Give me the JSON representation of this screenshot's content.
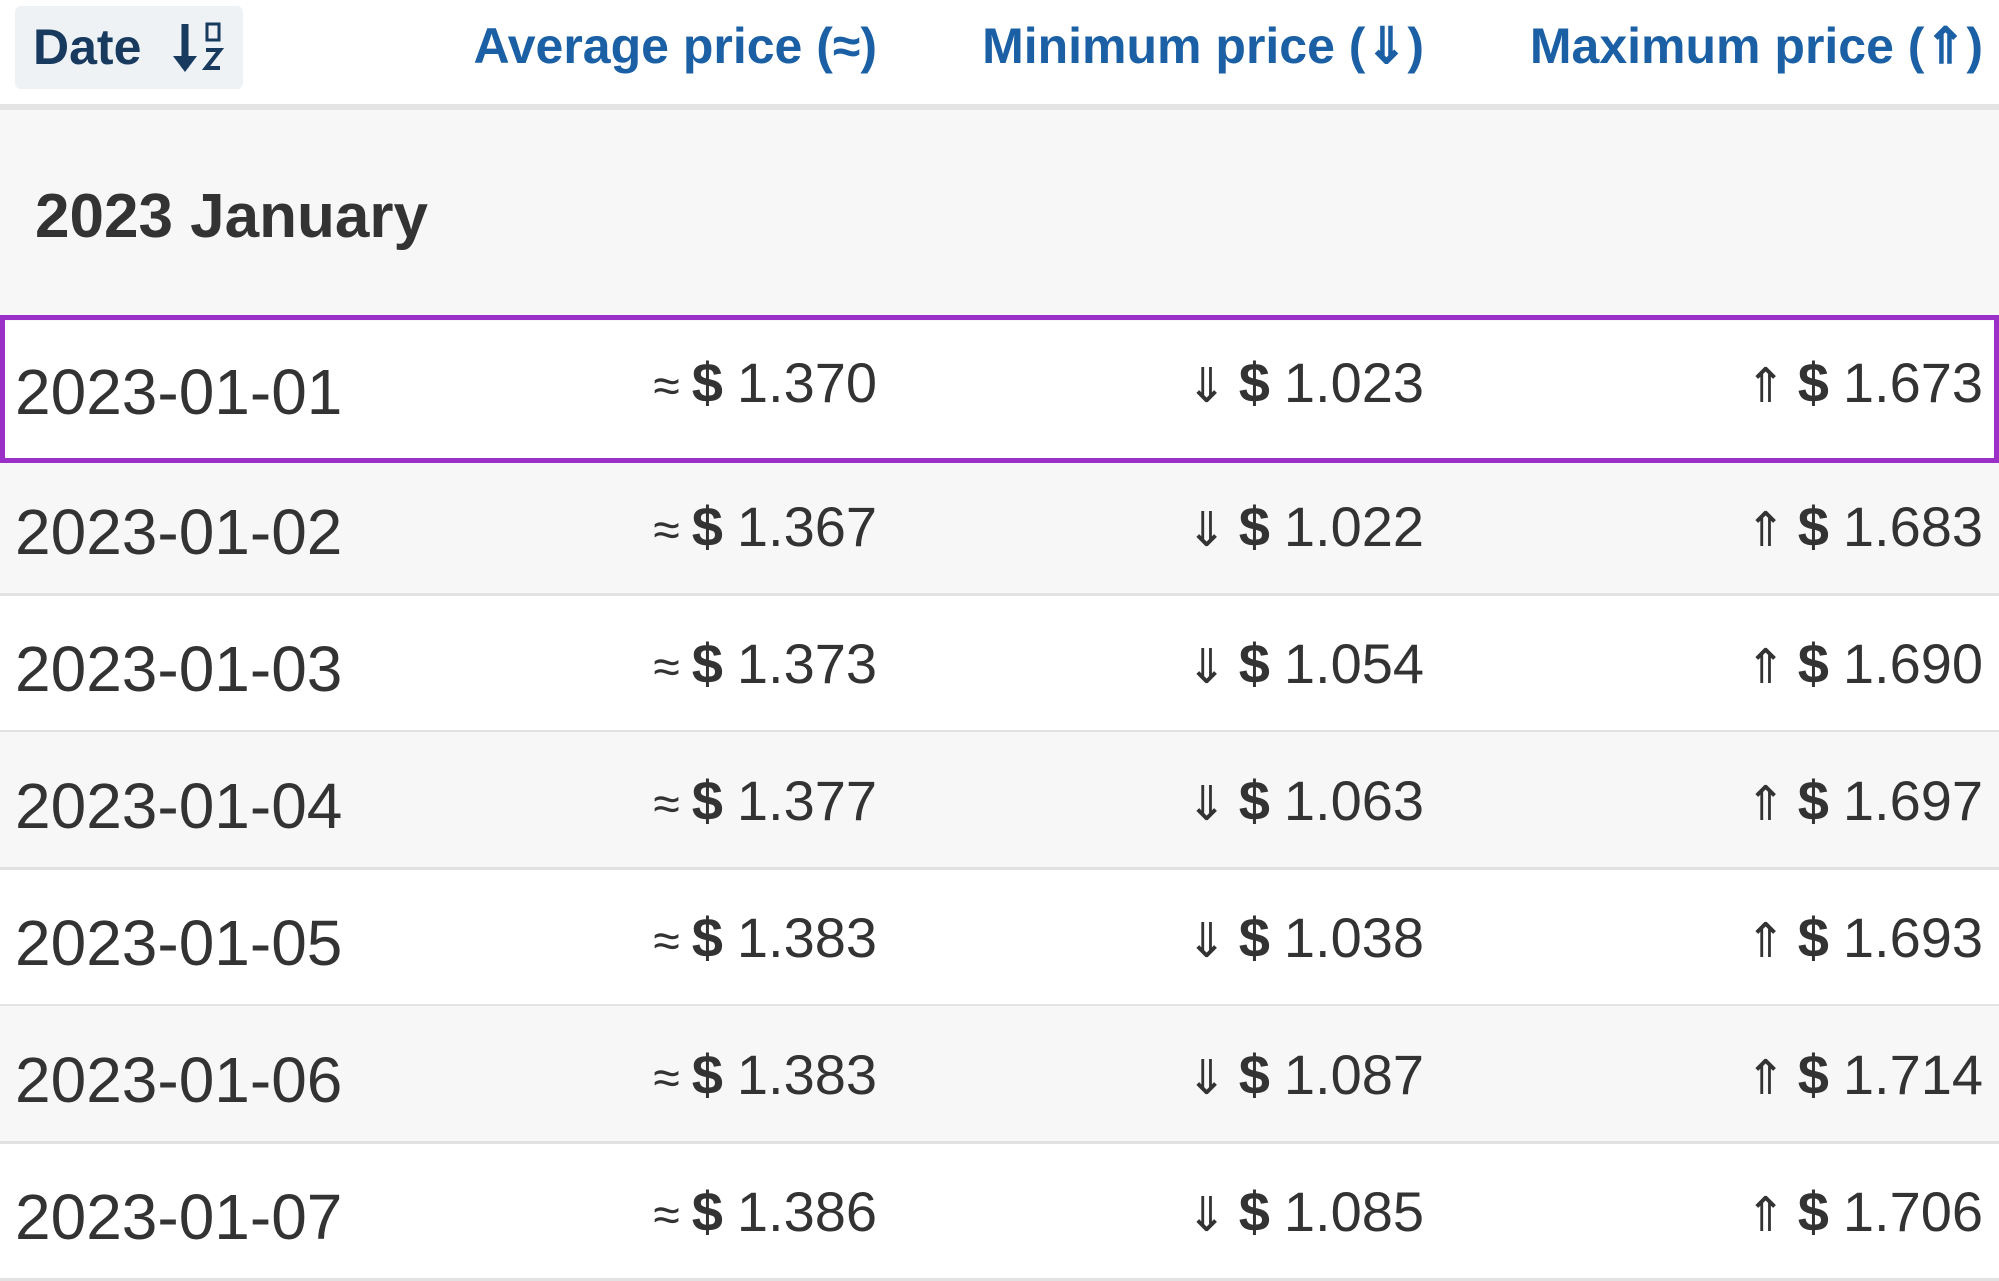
{
  "header": {
    "date": "Date",
    "average": "Average price (≈)",
    "minimum": "Minimum price (⇓)",
    "maximum": "Maximum price (⇑)"
  },
  "group": {
    "title": "2023 January"
  },
  "rows": [
    {
      "date": "2023-01-01",
      "avg": {
        "symbol": "≈",
        "currency": "$",
        "amount": "1.370"
      },
      "min": {
        "symbol": "⇓",
        "currency": "$",
        "amount": "1.023"
      },
      "max": {
        "symbol": "⇑",
        "currency": "$",
        "amount": "1.673"
      }
    },
    {
      "date": "2023-01-02",
      "avg": {
        "symbol": "≈",
        "currency": "$",
        "amount": "1.367"
      },
      "min": {
        "symbol": "⇓",
        "currency": "$",
        "amount": "1.022"
      },
      "max": {
        "symbol": "⇑",
        "currency": "$",
        "amount": "1.683"
      }
    },
    {
      "date": "2023-01-03",
      "avg": {
        "symbol": "≈",
        "currency": "$",
        "amount": "1.373"
      },
      "min": {
        "symbol": "⇓",
        "currency": "$",
        "amount": "1.054"
      },
      "max": {
        "symbol": "⇑",
        "currency": "$",
        "amount": "1.690"
      }
    },
    {
      "date": "2023-01-04",
      "avg": {
        "symbol": "≈",
        "currency": "$",
        "amount": "1.377"
      },
      "min": {
        "symbol": "⇓",
        "currency": "$",
        "amount": "1.063"
      },
      "max": {
        "symbol": "⇑",
        "currency": "$",
        "amount": "1.697"
      }
    },
    {
      "date": "2023-01-05",
      "avg": {
        "symbol": "≈",
        "currency": "$",
        "amount": "1.383"
      },
      "min": {
        "symbol": "⇓",
        "currency": "$",
        "amount": "1.038"
      },
      "max": {
        "symbol": "⇑",
        "currency": "$",
        "amount": "1.693"
      }
    },
    {
      "date": "2023-01-06",
      "avg": {
        "symbol": "≈",
        "currency": "$",
        "amount": "1.383"
      },
      "min": {
        "symbol": "⇓",
        "currency": "$",
        "amount": "1.087"
      },
      "max": {
        "symbol": "⇑",
        "currency": "$",
        "amount": "1.714"
      }
    },
    {
      "date": "2023-01-07",
      "avg": {
        "symbol": "≈",
        "currency": "$",
        "amount": "1.386"
      },
      "min": {
        "symbol": "⇓",
        "currency": "$",
        "amount": "1.085"
      },
      "max": {
        "symbol": "⇑",
        "currency": "$",
        "amount": "1.706"
      }
    }
  ]
}
